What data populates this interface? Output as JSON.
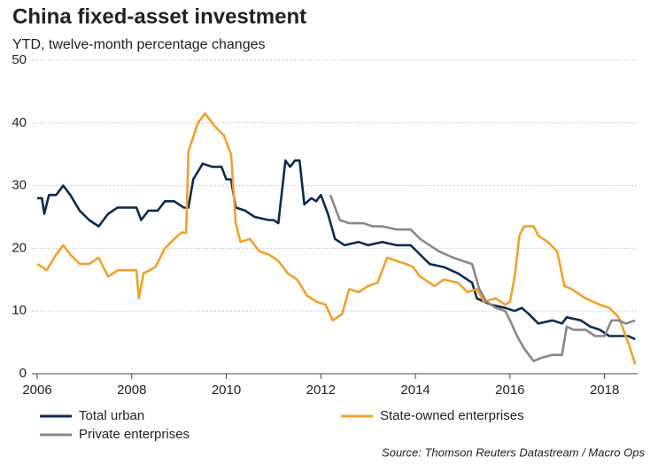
{
  "chart_data": {
    "type": "line",
    "title": "China fixed-asset investment",
    "subtitle": "YTD, twelve-month percentage changes",
    "source": "Source: Thomson Reuters Datastream / Macro Ops",
    "xlim": [
      2006,
      2018.7
    ],
    "xticks": [
      2006,
      2008,
      2010,
      2012,
      2014,
      2016,
      2018
    ],
    "ylim": [
      0,
      50
    ],
    "yticks": [
      0,
      10,
      20,
      30,
      40,
      50
    ],
    "grid": true,
    "legend": "bottom",
    "series": [
      {
        "name": "Total urban",
        "color": "#0d2b4e",
        "x": [
          2006.0,
          2006.1,
          2006.15,
          2006.25,
          2006.4,
          2006.55,
          2006.7,
          2006.9,
          2007.1,
          2007.3,
          2007.5,
          2007.7,
          2007.9,
          2008.1,
          2008.2,
          2008.35,
          2008.55,
          2008.7,
          2008.9,
          2009.1,
          2009.2,
          2009.3,
          2009.5,
          2009.7,
          2009.9,
          2010.0,
          2010.1,
          2010.2,
          2010.4,
          2010.6,
          2010.9,
          2011.0,
          2011.1,
          2011.25,
          2011.35,
          2011.45,
          2011.55,
          2011.65,
          2011.8,
          2011.9,
          2012.0,
          2012.15,
          2012.3,
          2012.5,
          2012.8,
          2013.0,
          2013.3,
          2013.6,
          2013.9,
          2014.1,
          2014.3,
          2014.6,
          2014.9,
          2015.2,
          2015.3,
          2015.6,
          2015.9,
          2016.1,
          2016.25,
          2016.4,
          2016.6,
          2016.9,
          2017.1,
          2017.2,
          2017.5,
          2017.7,
          2017.9,
          2018.1,
          2018.3,
          2018.5,
          2018.65
        ],
        "values": [
          28,
          28,
          25.5,
          28.5,
          28.5,
          30,
          28.5,
          26,
          24.5,
          23.5,
          25.5,
          26.5,
          26.5,
          26.5,
          24.5,
          26,
          26,
          27.5,
          27.5,
          26.5,
          26.5,
          31,
          33.5,
          33,
          33,
          31,
          31,
          26.5,
          26,
          25,
          24.5,
          24.5,
          24,
          34,
          33,
          34,
          34,
          27,
          28,
          27.5,
          28.5,
          25.5,
          21.5,
          20.5,
          21,
          20.5,
          21,
          20.5,
          20.5,
          19,
          17.5,
          17,
          16,
          14.5,
          12,
          11,
          10.5,
          10,
          10.5,
          9.5,
          8,
          8.5,
          8,
          9,
          8.5,
          7.5,
          7,
          6,
          6,
          6,
          5.5
        ]
      },
      {
        "name": "State-owned enterprises",
        "color": "#f0a030",
        "x": [
          2006.0,
          2006.2,
          2006.4,
          2006.55,
          2006.7,
          2006.9,
          2007.1,
          2007.3,
          2007.5,
          2007.7,
          2007.9,
          2008.1,
          2008.15,
          2008.25,
          2008.5,
          2008.7,
          2008.9,
          2009.05,
          2009.15,
          2009.2,
          2009.4,
          2009.55,
          2009.75,
          2009.95,
          2010.1,
          2010.2,
          2010.3,
          2010.5,
          2010.7,
          2010.9,
          2011.1,
          2011.3,
          2011.5,
          2011.7,
          2011.9,
          2012.1,
          2012.25,
          2012.45,
          2012.6,
          2012.8,
          2013.0,
          2013.2,
          2013.4,
          2013.6,
          2013.8,
          2013.95,
          2014.1,
          2014.4,
          2014.6,
          2014.9,
          2015.1,
          2015.3,
          2015.45,
          2015.7,
          2015.9,
          2016.0,
          2016.1,
          2016.2,
          2016.3,
          2016.5,
          2016.6,
          2016.8,
          2017.0,
          2017.15,
          2017.3,
          2017.6,
          2017.9,
          2018.1,
          2018.3,
          2018.5,
          2018.65
        ],
        "values": [
          17.5,
          16.5,
          19,
          20.5,
          19,
          17.5,
          17.5,
          18.5,
          15.5,
          16.5,
          16.5,
          16.5,
          12,
          16,
          17,
          20,
          21.5,
          22.5,
          22.5,
          35.5,
          40,
          41.5,
          39.5,
          38,
          35,
          24,
          21,
          21.5,
          19.5,
          19,
          18,
          16,
          15,
          12.5,
          11.5,
          11,
          8.5,
          9.5,
          13.5,
          13,
          14,
          14.5,
          18.5,
          18,
          17.5,
          17,
          15.5,
          14,
          15,
          14.5,
          13,
          13.5,
          11.5,
          12,
          11,
          11.5,
          15.5,
          22,
          23.5,
          23.5,
          22,
          21,
          19.5,
          14,
          13.5,
          12,
          11,
          10.5,
          9,
          5,
          1.5
        ]
      },
      {
        "name": "Private enterprises",
        "color": "#888888",
        "x": [
          2012.2,
          2012.4,
          2012.6,
          2012.9,
          2013.1,
          2013.3,
          2013.6,
          2013.9,
          2014.1,
          2014.3,
          2014.5,
          2014.8,
          2015.0,
          2015.2,
          2015.35,
          2015.5,
          2015.7,
          2015.9,
          2016.0,
          2016.15,
          2016.3,
          2016.5,
          2016.65,
          2016.9,
          2017.1,
          2017.2,
          2017.35,
          2017.6,
          2017.8,
          2018.0,
          2018.15,
          2018.3,
          2018.45,
          2018.65
        ],
        "values": [
          28.5,
          24.5,
          24,
          24,
          23.5,
          23.5,
          23,
          23,
          21.5,
          20.5,
          19.5,
          18.5,
          18,
          17.5,
          13.5,
          11.5,
          10.5,
          10,
          8.5,
          6,
          4,
          2,
          2.5,
          3,
          3,
          7.5,
          7,
          7,
          6,
          6,
          8.5,
          8.5,
          8,
          8.5
        ]
      }
    ]
  }
}
